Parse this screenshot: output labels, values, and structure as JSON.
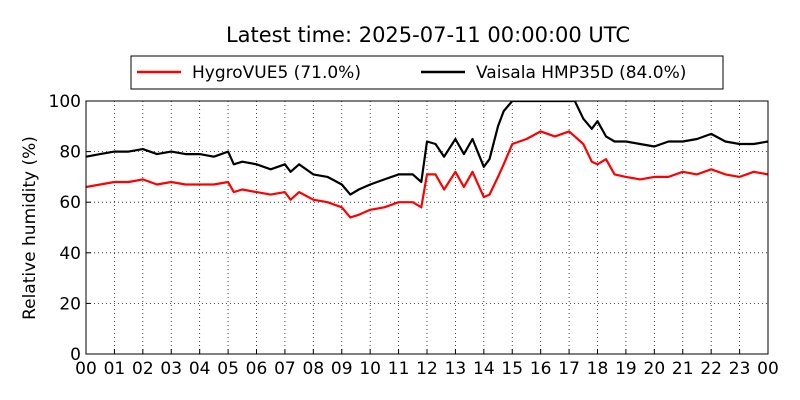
{
  "chart_data": {
    "type": "line",
    "title": "Latest time: 2025-07-11 00:00:00 UTC",
    "xlabel": "",
    "ylabel": "Relative humidity (%)",
    "ylim": [
      0,
      100
    ],
    "xlim": [
      0,
      24
    ],
    "grid": true,
    "legend_position": "top",
    "x_tick_labels": [
      "00",
      "01",
      "02",
      "03",
      "04",
      "05",
      "06",
      "07",
      "08",
      "09",
      "10",
      "11",
      "12",
      "13",
      "14",
      "15",
      "16",
      "17",
      "18",
      "19",
      "20",
      "21",
      "22",
      "23",
      "00"
    ],
    "y_tick_labels": [
      "0",
      "20",
      "40",
      "60",
      "80",
      "100"
    ],
    "series": [
      {
        "name": "HygroVUE5 (71.0%)",
        "color": "#ff0000",
        "x": [
          0,
          0.5,
          1,
          1.5,
          2,
          2.5,
          3,
          3.5,
          4,
          4.5,
          5,
          5.2,
          5.5,
          6,
          6.5,
          7,
          7.2,
          7.5,
          8,
          8.5,
          9,
          9.3,
          9.6,
          10,
          10.5,
          11,
          11.5,
          11.8,
          12,
          12.3,
          12.6,
          13,
          13.3,
          13.6,
          14,
          14.2,
          14.5,
          14.7,
          15,
          15.5,
          16,
          16.5,
          17,
          17.2,
          17.5,
          17.8,
          18,
          18.3,
          18.6,
          19,
          19.5,
          20,
          20.5,
          21,
          21.5,
          22,
          22.5,
          23,
          23.5,
          24
        ],
        "y": [
          66,
          67,
          68,
          68,
          69,
          67,
          68,
          67,
          67,
          67,
          68,
          64,
          65,
          64,
          63,
          64,
          61,
          64,
          61,
          60,
          58,
          54,
          55,
          57,
          58,
          60,
          60,
          58,
          71,
          71,
          65,
          72,
          66,
          72,
          62,
          63,
          70,
          75,
          83,
          85,
          88,
          86,
          88,
          86,
          83,
          76,
          75,
          77,
          71,
          70,
          69,
          70,
          70,
          72,
          71,
          73,
          71,
          70,
          72,
          71
        ]
      },
      {
        "name": "Vaisala HMP35D (84.0%)",
        "color": "#000000",
        "x": [
          0,
          0.5,
          1,
          1.5,
          2,
          2.5,
          3,
          3.5,
          4,
          4.5,
          5,
          5.2,
          5.5,
          6,
          6.5,
          7,
          7.2,
          7.5,
          8,
          8.5,
          9,
          9.3,
          9.6,
          10,
          10.5,
          11,
          11.5,
          11.8,
          12,
          12.3,
          12.6,
          13,
          13.3,
          13.6,
          14,
          14.2,
          14.5,
          14.7,
          15,
          15.5,
          16,
          16.5,
          17,
          17.2,
          17.5,
          17.8,
          18,
          18.3,
          18.6,
          19,
          19.5,
          20,
          20.5,
          21,
          21.5,
          22,
          22.5,
          23,
          23.5,
          24
        ],
        "y": [
          78,
          79,
          80,
          80,
          81,
          79,
          80,
          79,
          79,
          78,
          80,
          75,
          76,
          75,
          73,
          75,
          72,
          75,
          71,
          70,
          67,
          63,
          65,
          67,
          69,
          71,
          71,
          68,
          84,
          83,
          78,
          85,
          79,
          85,
          74,
          77,
          90,
          96,
          100,
          100,
          100,
          100,
          100,
          100,
          93,
          89,
          92,
          86,
          84,
          84,
          83,
          82,
          84,
          84,
          85,
          87,
          84,
          83,
          83,
          84
        ]
      }
    ]
  }
}
